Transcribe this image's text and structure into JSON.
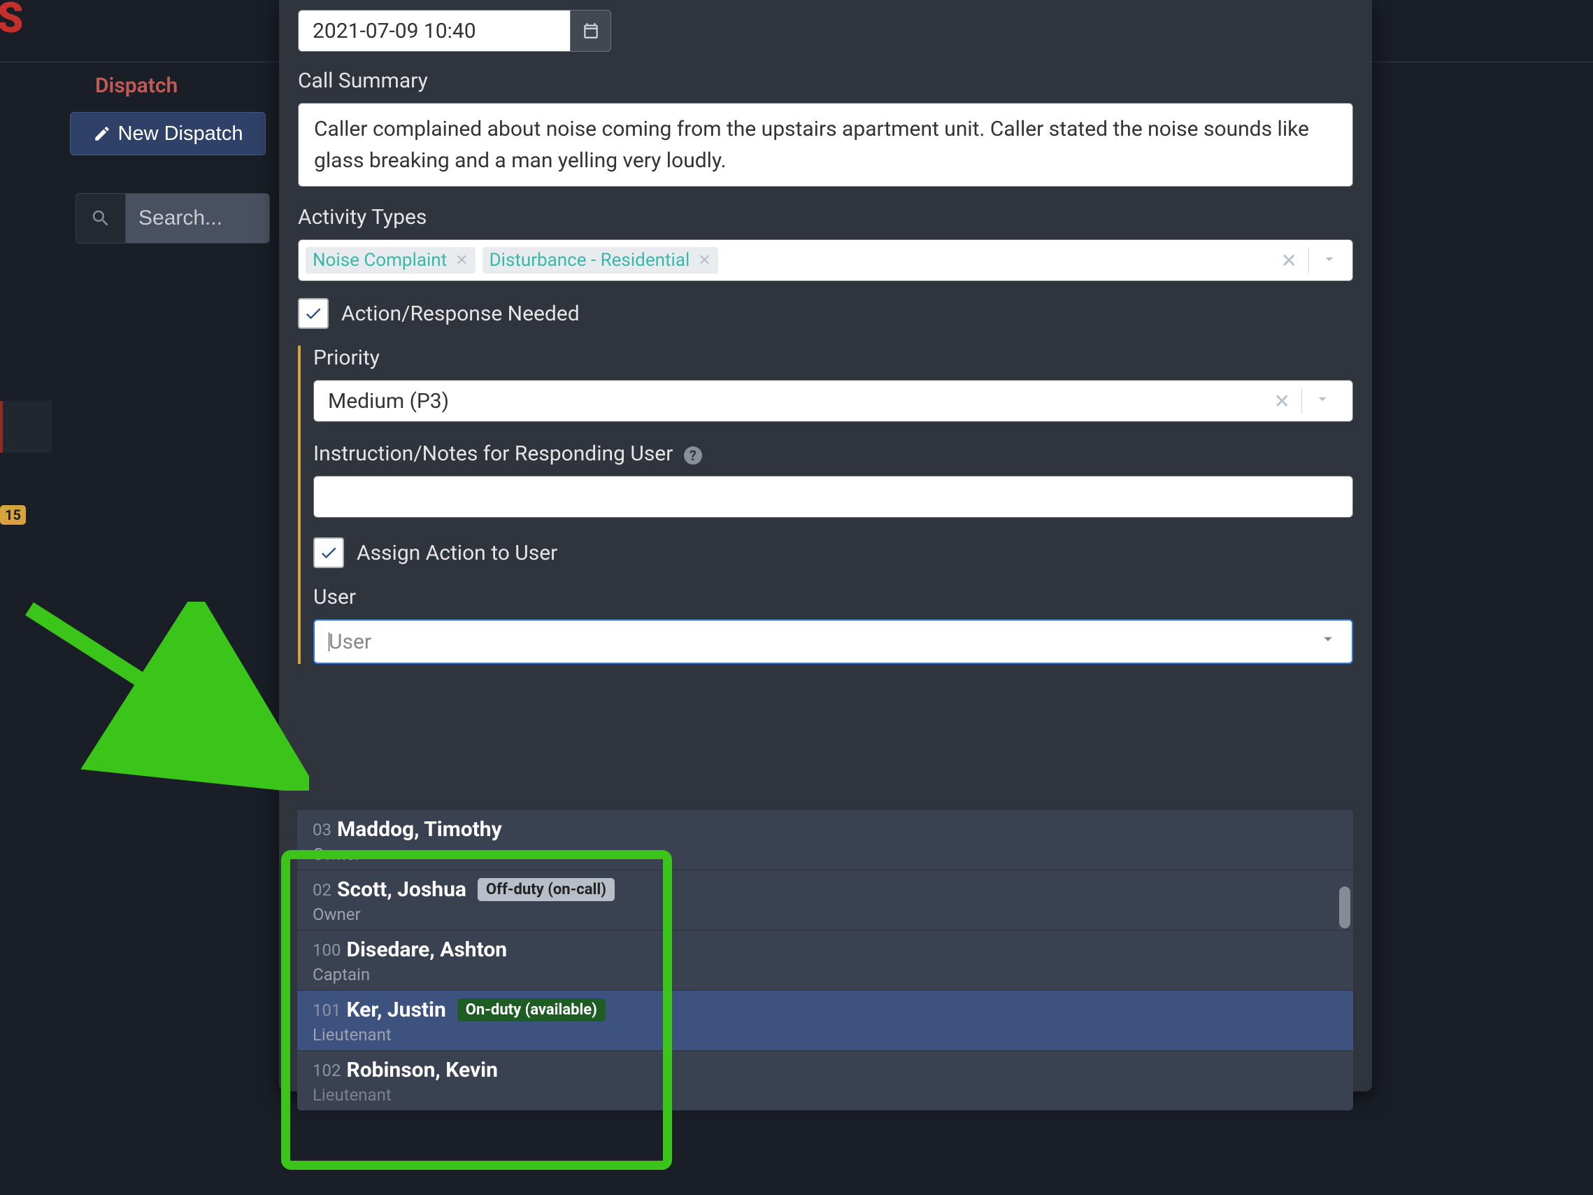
{
  "colors": {
    "bg": "#1a1e26",
    "panel": "#2f343d",
    "logo": "#c4302b",
    "accent_green": "#3bc41a",
    "accent_teal": "#39b8a7",
    "accent_amber": "#d6a33d",
    "select_focus": "#2d78e6",
    "dropdown_highlight": "#3e5280"
  },
  "header": {
    "logo": "RMS",
    "dispatch_label": "Dispatch",
    "new_dispatch": "New Dispatch",
    "search_placeholder": "Search..."
  },
  "sidebar": {
    "badge_count": "15"
  },
  "form": {
    "datetime": "2021-07-09 10:40",
    "call_summary_label": "Call Summary",
    "call_summary": "Caller complained about noise coming from the upstairs apartment unit. Caller stated the noise sounds like glass breaking and a man yelling very loudly.",
    "activity_types_label": "Activity Types",
    "activity_tags": [
      {
        "label": "Noise Complaint"
      },
      {
        "label": "Disturbance - Residential"
      }
    ],
    "action_needed_label": "Action/Response Needed",
    "action_needed_checked": true,
    "priority_label": "Priority",
    "priority_value": "Medium (P3)",
    "instruction_label": "Instruction/Notes for Responding User",
    "assign_label": "Assign Action to User",
    "assign_checked": true,
    "user_label": "User",
    "user_placeholder": "User"
  },
  "user_dropdown": {
    "items": [
      {
        "num": "03",
        "name": "Maddog, Timothy",
        "role": "Owner",
        "status": null,
        "highlight": false
      },
      {
        "num": "02",
        "name": "Scott, Joshua",
        "role": "Owner",
        "status": "Off-duty (on-call)",
        "status_class": "off",
        "highlight": false
      },
      {
        "num": "100",
        "name": "Disedare, Ashton",
        "role": "Captain",
        "status": null,
        "highlight": false
      },
      {
        "num": "101",
        "name": "Ker, Justin",
        "role": "Lieutenant",
        "status": "On-duty (available)",
        "status_class": "on",
        "highlight": true
      },
      {
        "num": "102",
        "name": "Robinson, Kevin",
        "role": "Lieutenant",
        "status": null,
        "highlight": false,
        "dim": true
      }
    ]
  }
}
